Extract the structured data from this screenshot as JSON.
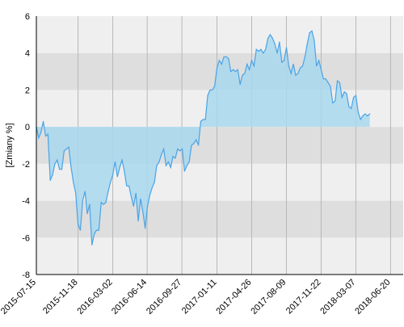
{
  "chart_data": {
    "type": "area",
    "title": "",
    "xlabel": "",
    "ylabel": "[Zmiany %]",
    "ylim": [
      -8,
      6
    ],
    "y_ticks": [
      -8,
      -6,
      -4,
      -2,
      0,
      2,
      4,
      6
    ],
    "x_tick_labels": [
      "2015-07-15",
      "2015-11-18",
      "2016-03-02",
      "2016-06-14",
      "2016-09-27",
      "2017-01-11",
      "2017-04-26",
      "2017-08-09",
      "2017-11-22",
      "2018-03-07",
      "2018-06-20"
    ],
    "x_range": [
      "2015-07-15",
      "2018-07-28"
    ],
    "grid": true,
    "colors": {
      "band_light": "#efefef",
      "band_dark": "#dedede",
      "line": "#4aa3e6",
      "fill": "#a8d8ee",
      "axis": "#000000",
      "grid_v": "#b8b8b8"
    },
    "series": [
      {
        "points": [
          [
            "2015-07-15",
            0.0
          ],
          [
            "2015-07-22",
            -0.6
          ],
          [
            "2015-07-29",
            -0.3
          ],
          [
            "2015-08-05",
            0.3
          ],
          [
            "2015-08-12",
            -0.5
          ],
          [
            "2015-08-19",
            -0.4
          ],
          [
            "2015-08-26",
            -2.9
          ],
          [
            "2015-09-02",
            -2.6
          ],
          [
            "2015-09-09",
            -2.0
          ],
          [
            "2015-09-16",
            -1.8
          ],
          [
            "2015-09-23",
            -2.3
          ],
          [
            "2015-09-30",
            -2.3
          ],
          [
            "2015-10-07",
            -1.3
          ],
          [
            "2015-10-14",
            -1.2
          ],
          [
            "2015-10-21",
            -1.1
          ],
          [
            "2015-10-28",
            -2.2
          ],
          [
            "2015-11-04",
            -3.0
          ],
          [
            "2015-11-11",
            -3.6
          ],
          [
            "2015-11-18",
            -5.3
          ],
          [
            "2015-11-25",
            -5.6
          ],
          [
            "2015-12-02",
            -4.0
          ],
          [
            "2015-12-09",
            -3.5
          ],
          [
            "2015-12-16",
            -4.7
          ],
          [
            "2015-12-23",
            -4.2
          ],
          [
            "2015-12-30",
            -6.4
          ],
          [
            "2016-01-06",
            -5.8
          ],
          [
            "2016-01-13",
            -5.6
          ],
          [
            "2016-01-20",
            -5.6
          ],
          [
            "2016-01-27",
            -4.1
          ],
          [
            "2016-02-03",
            -4.2
          ],
          [
            "2016-02-10",
            -4.1
          ],
          [
            "2016-02-17",
            -3.5
          ],
          [
            "2016-02-24",
            -3.0
          ],
          [
            "2016-03-02",
            -2.6
          ],
          [
            "2016-03-09",
            -1.9
          ],
          [
            "2016-03-16",
            -2.7
          ],
          [
            "2016-03-23",
            -2.2
          ],
          [
            "2016-03-30",
            -1.8
          ],
          [
            "2016-04-06",
            -2.4
          ],
          [
            "2016-04-13",
            -3.2
          ],
          [
            "2016-04-20",
            -3.2
          ],
          [
            "2016-04-27",
            -3.8
          ],
          [
            "2016-05-04",
            -4.3
          ],
          [
            "2016-05-11",
            -3.6
          ],
          [
            "2016-05-18",
            -5.1
          ],
          [
            "2016-05-25",
            -3.9
          ],
          [
            "2016-06-01",
            -4.6
          ],
          [
            "2016-06-08",
            -5.5
          ],
          [
            "2016-06-15",
            -4.3
          ],
          [
            "2016-06-22",
            -3.7
          ],
          [
            "2016-06-29",
            -3.3
          ],
          [
            "2016-07-06",
            -3.0
          ],
          [
            "2016-07-13",
            -2.1
          ],
          [
            "2016-07-20",
            -1.9
          ],
          [
            "2016-07-27",
            -1.5
          ],
          [
            "2016-08-03",
            -1.2
          ],
          [
            "2016-08-10",
            -2.1
          ],
          [
            "2016-08-17",
            -1.9
          ],
          [
            "2016-08-24",
            -2.2
          ],
          [
            "2016-08-31",
            -1.6
          ],
          [
            "2016-09-07",
            -1.7
          ],
          [
            "2016-09-14",
            -1.2
          ],
          [
            "2016-09-21",
            -1.3
          ],
          [
            "2016-09-28",
            -1.2
          ],
          [
            "2016-10-05",
            -2.4
          ],
          [
            "2016-10-12",
            -2.1
          ],
          [
            "2016-10-19",
            -1.9
          ],
          [
            "2016-10-26",
            -1.0
          ],
          [
            "2016-11-02",
            -0.9
          ],
          [
            "2016-11-09",
            -0.7
          ],
          [
            "2016-11-16",
            -1.0
          ],
          [
            "2016-11-23",
            0.3
          ],
          [
            "2016-11-30",
            0.4
          ],
          [
            "2016-12-07",
            0.4
          ],
          [
            "2016-12-14",
            1.7
          ],
          [
            "2016-12-21",
            2.0
          ],
          [
            "2016-12-28",
            2.0
          ],
          [
            "2017-01-04",
            2.2
          ],
          [
            "2017-01-11",
            3.2
          ],
          [
            "2017-01-18",
            3.6
          ],
          [
            "2017-01-25",
            3.4
          ],
          [
            "2017-02-01",
            3.8
          ],
          [
            "2017-02-08",
            3.8
          ],
          [
            "2017-02-15",
            3.7
          ],
          [
            "2017-02-22",
            3.0
          ],
          [
            "2017-03-01",
            3.1
          ],
          [
            "2017-03-08",
            3.0
          ],
          [
            "2017-03-15",
            3.1
          ],
          [
            "2017-03-22",
            2.3
          ],
          [
            "2017-03-29",
            2.8
          ],
          [
            "2017-04-05",
            2.9
          ],
          [
            "2017-04-12",
            3.4
          ],
          [
            "2017-04-19",
            3.1
          ],
          [
            "2017-04-26",
            3.6
          ],
          [
            "2017-05-03",
            3.3
          ],
          [
            "2017-05-10",
            4.2
          ],
          [
            "2017-05-17",
            4.1
          ],
          [
            "2017-05-24",
            4.2
          ],
          [
            "2017-05-31",
            4.0
          ],
          [
            "2017-06-07",
            4.2
          ],
          [
            "2017-06-14",
            4.8
          ],
          [
            "2017-06-21",
            5.0
          ],
          [
            "2017-06-28",
            4.8
          ],
          [
            "2017-07-05",
            4.5
          ],
          [
            "2017-07-12",
            4.0
          ],
          [
            "2017-07-19",
            4.6
          ],
          [
            "2017-07-26",
            3.5
          ],
          [
            "2017-08-02",
            3.6
          ],
          [
            "2017-08-09",
            4.3
          ],
          [
            "2017-08-16",
            3.3
          ],
          [
            "2017-08-23",
            2.9
          ],
          [
            "2017-08-30",
            3.4
          ],
          [
            "2017-09-06",
            2.8
          ],
          [
            "2017-09-13",
            2.9
          ],
          [
            "2017-09-20",
            3.2
          ],
          [
            "2017-09-27",
            3.3
          ],
          [
            "2017-10-04",
            3.8
          ],
          [
            "2017-10-11",
            4.5
          ],
          [
            "2017-10-18",
            5.1
          ],
          [
            "2017-10-25",
            5.2
          ],
          [
            "2017-11-01",
            4.7
          ],
          [
            "2017-11-08",
            3.3
          ],
          [
            "2017-11-15",
            3.6
          ],
          [
            "2017-11-22",
            3.1
          ],
          [
            "2017-11-29",
            2.6
          ],
          [
            "2017-12-06",
            2.6
          ],
          [
            "2017-12-13",
            2.4
          ],
          [
            "2017-12-20",
            2.2
          ],
          [
            "2017-12-27",
            1.3
          ],
          [
            "2018-01-03",
            1.4
          ],
          [
            "2018-01-10",
            2.5
          ],
          [
            "2018-01-17",
            2.4
          ],
          [
            "2018-01-24",
            1.6
          ],
          [
            "2018-01-31",
            1.9
          ],
          [
            "2018-02-07",
            1.8
          ],
          [
            "2018-02-14",
            1.1
          ],
          [
            "2018-02-21",
            1.0
          ],
          [
            "2018-02-28",
            1.6
          ],
          [
            "2018-03-07",
            1.7
          ],
          [
            "2018-03-14",
            0.8
          ],
          [
            "2018-03-21",
            0.4
          ],
          [
            "2018-03-28",
            0.6
          ],
          [
            "2018-04-04",
            0.7
          ],
          [
            "2018-04-11",
            0.6
          ],
          [
            "2018-04-18",
            0.7
          ]
        ]
      }
    ]
  }
}
